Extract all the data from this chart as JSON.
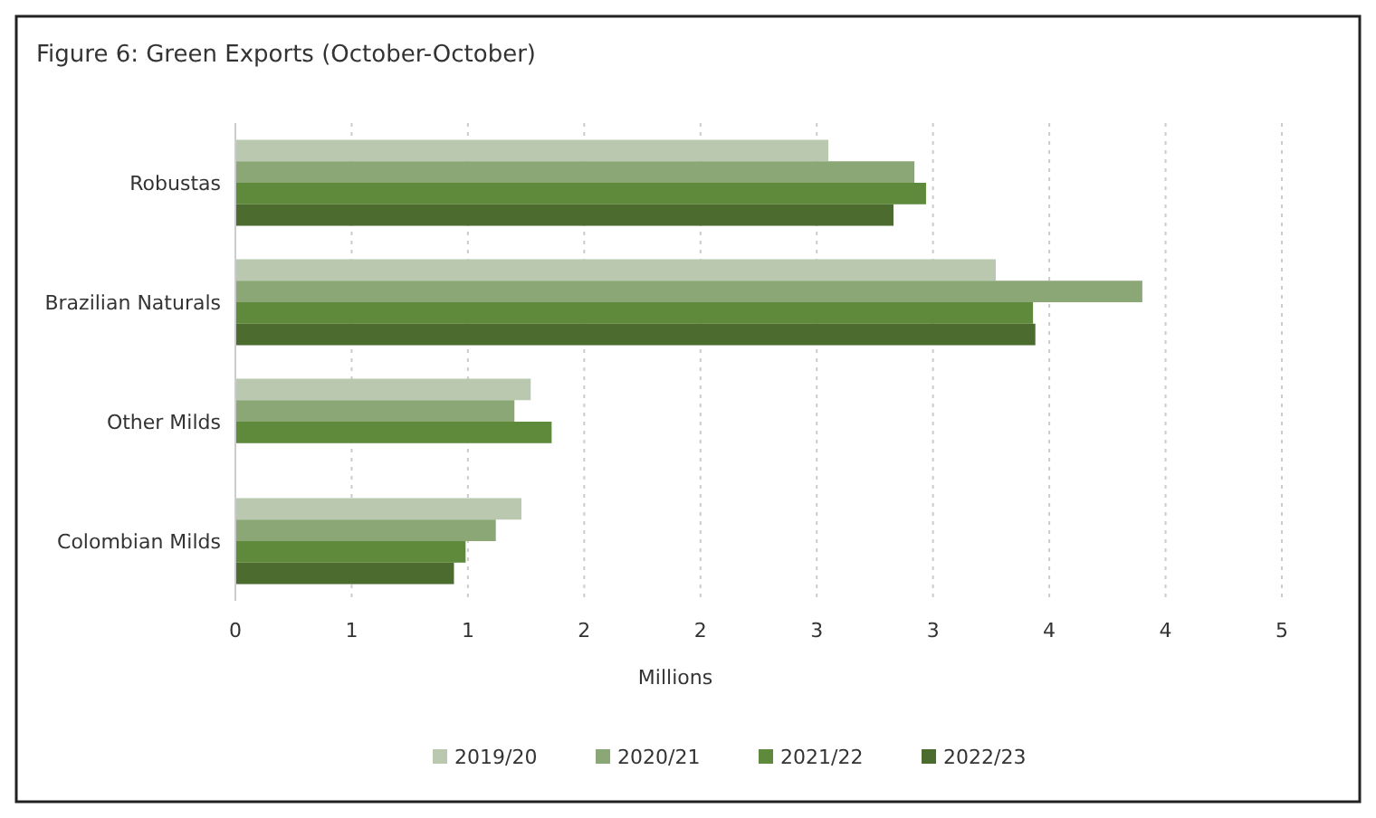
{
  "chart_data": {
    "type": "bar",
    "orientation": "horizontal",
    "title": "Figure 6: Green Exports (October-October)",
    "xlabel": "Millions",
    "categories": [
      "Robustas",
      "Brazilian Naturals",
      "Other Milds",
      "Colombian Milds"
    ],
    "series": [
      {
        "name": "2019/20",
        "color": "#bac8b0",
        "values": [
          2.55,
          3.27,
          1.27,
          1.23
        ]
      },
      {
        "name": "2020/21",
        "color": "#8ba776",
        "values": [
          2.92,
          3.9,
          1.2,
          1.12
        ]
      },
      {
        "name": "2021/22",
        "color": "#5f8a3c",
        "values": [
          2.97,
          3.43,
          1.36,
          0.99
        ]
      },
      {
        "name": "2022/23",
        "color": "#4b6b2f",
        "values": [
          2.83,
          3.44,
          null,
          0.94
        ]
      }
    ],
    "xlim": [
      0,
      4.5
    ],
    "xticks": [
      0,
      {
        "value": 0.5,
        "label": "1"
      },
      1,
      {
        "value": 1.5,
        "label": "2"
      },
      2,
      {
        "value": 2.5,
        "label": "3"
      },
      3,
      {
        "value": 3.5,
        "label": "4"
      },
      4,
      {
        "value": 4.5,
        "label": "5"
      }
    ],
    "grid": "x",
    "legend": "bottom"
  }
}
